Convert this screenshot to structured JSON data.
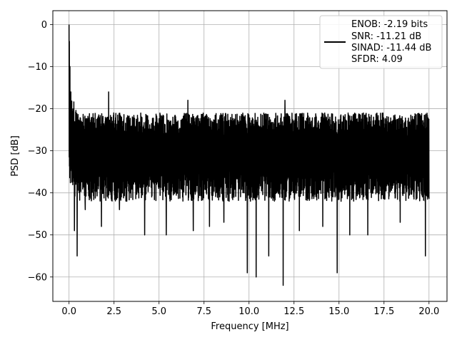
{
  "chart_data": {
    "type": "line",
    "xlabel": "Frequency [MHz]",
    "ylabel": "PSD [dB]",
    "xlim": [
      -0.9,
      21.0
    ],
    "ylim": [
      -65.8,
      3.3
    ],
    "xticks": [
      0.0,
      2.5,
      5.0,
      7.5,
      10.0,
      12.5,
      15.0,
      17.5,
      20.0
    ],
    "xtick_labels": [
      "0.0",
      "2.5",
      "5.0",
      "7.5",
      "10.0",
      "12.5",
      "15.0",
      "17.5",
      "20.0"
    ],
    "yticks": [
      0,
      -10,
      -20,
      -30,
      -40,
      -50,
      -60
    ],
    "ytick_labels": [
      "0",
      "−10",
      "−20",
      "−30",
      "−40",
      "−50",
      "−60"
    ],
    "grid": true,
    "legend_placement": "upper right",
    "line_color": "#000000",
    "series": [
      {
        "legend_lines": [
          "ENOB: -2.19 bits",
          "SNR: -11.21 dB",
          "SINAD: -11.44 dB",
          "SFDR: 4.09"
        ],
        "x_range": [
          0,
          20
        ],
        "peak": [
          0.0,
          0.0
        ],
        "noise_floor_mean_db": -30,
        "typical_upper_envelope_db": -21,
        "typical_lower_envelope_db": -40,
        "spikes": [
          {
            "x": 0.02,
            "y": -4
          },
          {
            "x": 0.05,
            "y": -10
          },
          {
            "x": 0.1,
            "y": -16
          },
          {
            "x": 0.3,
            "y": -49
          },
          {
            "x": 0.45,
            "y": -55
          },
          {
            "x": 0.9,
            "y": -44
          },
          {
            "x": 1.8,
            "y": -48
          },
          {
            "x": 2.2,
            "y": -16
          },
          {
            "x": 2.8,
            "y": -44
          },
          {
            "x": 4.2,
            "y": -50
          },
          {
            "x": 5.4,
            "y": -50
          },
          {
            "x": 6.6,
            "y": -18
          },
          {
            "x": 6.9,
            "y": -49
          },
          {
            "x": 7.8,
            "y": -48
          },
          {
            "x": 8.6,
            "y": -47
          },
          {
            "x": 9.9,
            "y": -59
          },
          {
            "x": 10.4,
            "y": -60
          },
          {
            "x": 11.1,
            "y": -55
          },
          {
            "x": 11.9,
            "y": -62
          },
          {
            "x": 12.0,
            "y": -18
          },
          {
            "x": 12.8,
            "y": -49
          },
          {
            "x": 14.1,
            "y": -48
          },
          {
            "x": 14.9,
            "y": -59
          },
          {
            "x": 15.6,
            "y": -50
          },
          {
            "x": 16.6,
            "y": -50
          },
          {
            "x": 18.4,
            "y": -47
          },
          {
            "x": 19.8,
            "y": -55
          }
        ]
      }
    ]
  }
}
